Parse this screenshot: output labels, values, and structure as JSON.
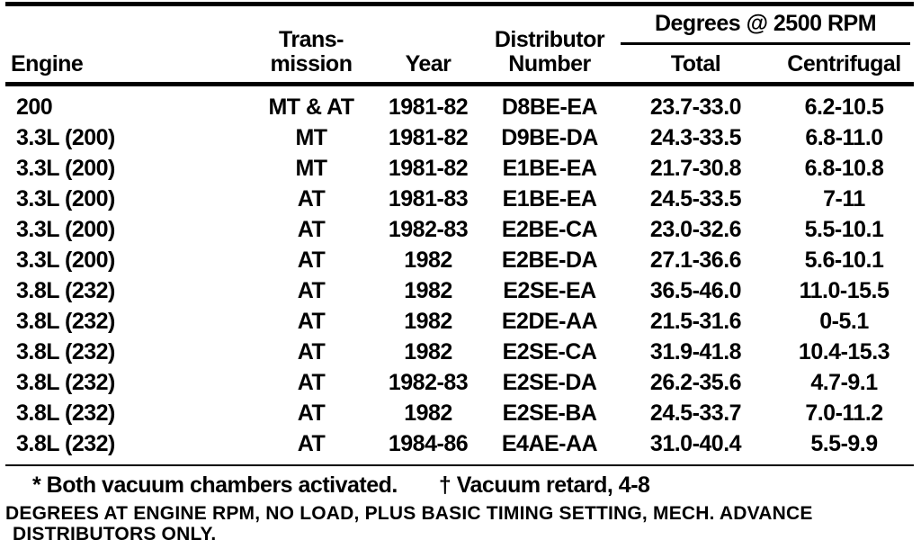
{
  "colors": {
    "ink": "#000000",
    "paper": "#ffffff"
  },
  "table": {
    "headers": {
      "engine": "Engine",
      "transmission_line1": "Trans-",
      "transmission_line2": "mission",
      "year": "Year",
      "distributor_line1": "Distributor",
      "distributor_line2": "Number",
      "degrees_group": "Degrees @ 2500 RPM",
      "total": "Total",
      "centrifugal": "Centrifugal"
    },
    "rows": [
      {
        "engine": "200",
        "transmission": "MT & AT",
        "year": "1981-82",
        "distributor": "D8BE-EA",
        "total": "23.7-33.0",
        "centrifugal": "6.2-10.5"
      },
      {
        "engine": "3.3L (200)",
        "transmission": "MT",
        "year": "1981-82",
        "distributor": "D9BE-DA",
        "total": "24.3-33.5",
        "centrifugal": "6.8-11.0"
      },
      {
        "engine": "3.3L (200)",
        "transmission": "MT",
        "year": "1981-82",
        "distributor": "E1BE-EA",
        "total": "21.7-30.8",
        "centrifugal": "6.8-10.8"
      },
      {
        "engine": "3.3L (200)",
        "transmission": "AT",
        "year": "1981-83",
        "distributor": "E1BE-EA",
        "total": "24.5-33.5",
        "centrifugal": "7-11"
      },
      {
        "engine": "3.3L (200)",
        "transmission": "AT",
        "year": "1982-83",
        "distributor": "E2BE-CA",
        "total": "23.0-32.6",
        "centrifugal": "5.5-10.1"
      },
      {
        "engine": "3.3L (200)",
        "transmission": "AT",
        "year": "1982",
        "distributor": "E2BE-DA",
        "total": "27.1-36.6",
        "centrifugal": "5.6-10.1"
      },
      {
        "engine": "3.8L (232)",
        "transmission": "AT",
        "year": "1982",
        "distributor": "E2SE-EA",
        "total": "36.5-46.0",
        "centrifugal": "11.0-15.5"
      },
      {
        "engine": "3.8L (232)",
        "transmission": "AT",
        "year": "1982",
        "distributor": "E2DE-AA",
        "total": "21.5-31.6",
        "centrifugal": "0-5.1"
      },
      {
        "engine": "3.8L (232)",
        "transmission": "AT",
        "year": "1982",
        "distributor": "E2SE-CA",
        "total": "31.9-41.8",
        "centrifugal": "10.4-15.3"
      },
      {
        "engine": "3.8L (232)",
        "transmission": "AT",
        "year": "1982-83",
        "distributor": "E2SE-DA",
        "total": "26.2-35.6",
        "centrifugal": "4.7-9.1"
      },
      {
        "engine": "3.8L (232)",
        "transmission": "AT",
        "year": "1982",
        "distributor": "E2SE-BA",
        "total": "24.5-33.7",
        "centrifugal": "7.0-11.2"
      },
      {
        "engine": "3.8L (232)",
        "transmission": "AT",
        "year": "1984-86",
        "distributor": "E4AE-AA",
        "total": "31.0-40.4",
        "centrifugal": "5.5-9.9"
      }
    ]
  },
  "footnotes": {
    "asterisk": "* Both vacuum chambers activated.",
    "dagger": "† Vacuum retard, 4-8",
    "note_line1": "DEGREES AT ENGINE RPM, NO LOAD, PLUS BASIC TIMING SETTING, MECH. ADVANCE",
    "note_line2": "DISTRIBUTORS ONLY."
  }
}
